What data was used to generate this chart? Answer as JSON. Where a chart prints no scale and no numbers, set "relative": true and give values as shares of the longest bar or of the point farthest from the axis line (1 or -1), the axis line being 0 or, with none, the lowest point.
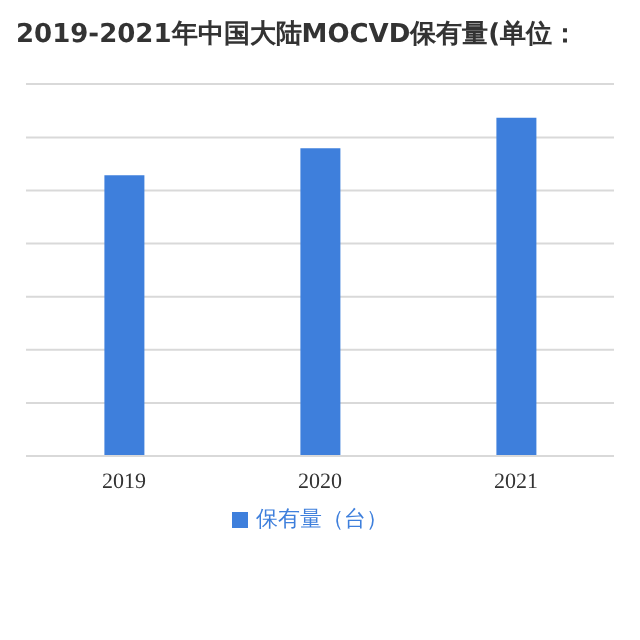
{
  "chart_data": {
    "type": "bar",
    "title": "2019-2021年中国大陆MOCVD保有量(单位：",
    "categories": [
      "2019",
      "2020",
      "2021"
    ],
    "series": [
      {
        "name": "保有量（台）",
        "color": "#3e7fdc",
        "values": [
          0.83,
          0.91,
          1
        ]
      }
    ],
    "relative": true,
    "grid": "y",
    "legend": "bottom"
  }
}
